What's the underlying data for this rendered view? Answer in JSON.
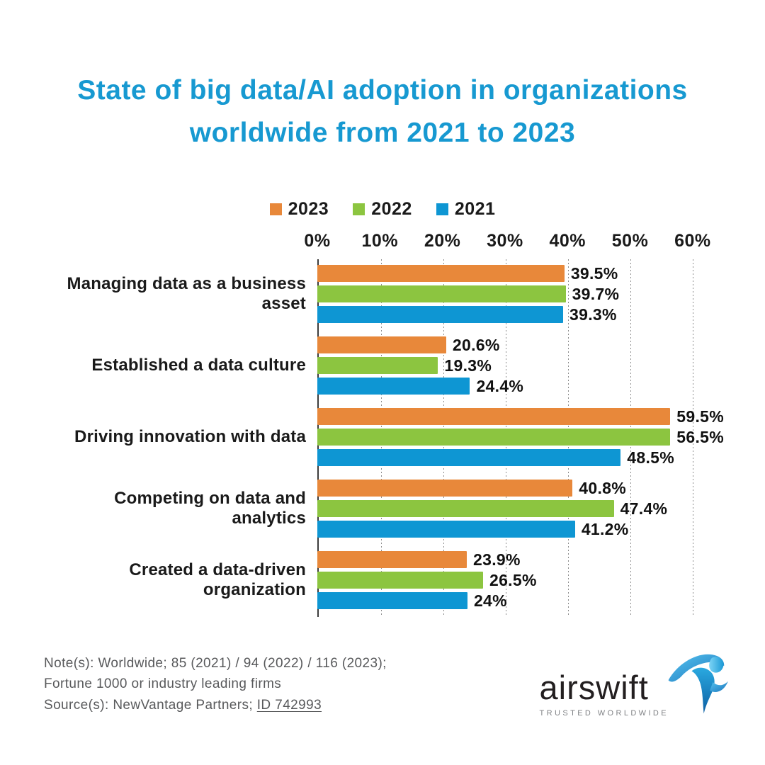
{
  "title": "State of big data/AI adoption in organizations worldwide from 2021 to 2023",
  "colors": {
    "title": "#1799d1",
    "series_2023": "#e8883a",
    "series_2022": "#8cc540",
    "series_2021": "#0e96d3",
    "axis_line": "#3c3c3c",
    "text": "#1a1a1a",
    "notes": "#58595b"
  },
  "chart_data": {
    "type": "bar",
    "orientation": "horizontal",
    "title": "State of big data/AI adoption in organizations worldwide from 2021 to 2023",
    "categories": [
      "Managing data as a business asset",
      "Established a data culture",
      "Driving innovation with data",
      "Competing on data and analytics",
      "Created a data-driven organization"
    ],
    "series": [
      {
        "name": "2023",
        "color": "#e8883a",
        "values": [
          39.5,
          20.6,
          59.5,
          40.8,
          23.9
        ],
        "labels": [
          "39.5%",
          "20.6%",
          "59.5%",
          "40.8%",
          "23.9%"
        ]
      },
      {
        "name": "2022",
        "color": "#8cc540",
        "values": [
          39.7,
          19.3,
          56.5,
          47.4,
          26.5
        ],
        "labels": [
          "39.7%",
          "19.3%",
          "56.5%",
          "47.4%",
          "26.5%"
        ]
      },
      {
        "name": "2021",
        "color": "#0e96d3",
        "values": [
          39.3,
          24.4,
          48.5,
          41.2,
          24
        ],
        "labels": [
          "39.3%",
          "24.4%",
          "48.5%",
          "41.2%",
          "24%"
        ]
      }
    ],
    "x_ticks": [
      "0%",
      "10%",
      "20%",
      "30%",
      "40%",
      "50%",
      "60%"
    ],
    "x_tick_values": [
      0,
      10,
      20,
      30,
      40,
      50,
      60
    ],
    "xlim": [
      0,
      65
    ],
    "xlabel": "",
    "ylabel": "",
    "grid": "dotted-vertical",
    "legend_position": "top",
    "value_labels": "outside-end"
  },
  "legend": [
    {
      "label": "2023",
      "color": "#e8883a"
    },
    {
      "label": "2022",
      "color": "#8cc540"
    },
    {
      "label": "2021",
      "color": "#0e96d3"
    }
  ],
  "notes": {
    "line1": "Note(s): Worldwide; 85 (2021) / 94 (2022) / 116 (2023);",
    "line2": "Fortune 1000 or industry leading firms",
    "source_prefix": "Source(s): NewVantage Partners; ",
    "source_link": "ID 742993"
  },
  "logo": {
    "name": "airswift",
    "tagline": "TRUSTED WORLDWIDE"
  }
}
